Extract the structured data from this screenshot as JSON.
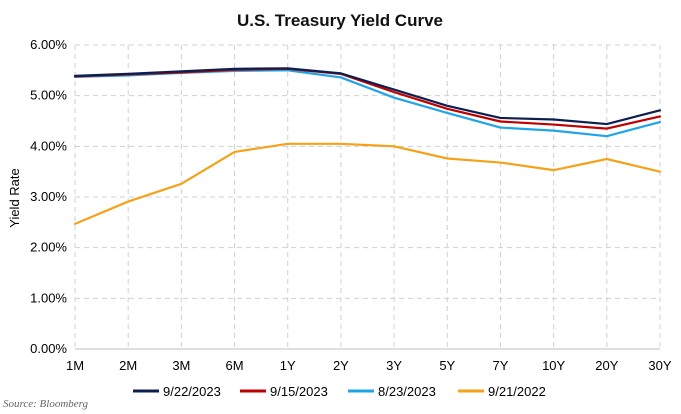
{
  "chart_data": {
    "type": "line",
    "title": "U.S. Treasury Yield Curve",
    "ylabel": "Yield Rate",
    "xlabel": "",
    "categories": [
      "1M",
      "2M",
      "3M",
      "6M",
      "1Y",
      "2Y",
      "3Y",
      "5Y",
      "7Y",
      "10Y",
      "20Y",
      "30Y"
    ],
    "ylim": [
      0,
      6
    ],
    "ytick_values": [
      0,
      1,
      2,
      3,
      4,
      5,
      6
    ],
    "ytick_labels": [
      "0.00%",
      "1.00%",
      "2.00%",
      "3.00%",
      "4.00%",
      "5.00%",
      "6.00%"
    ],
    "grid": true,
    "legend_position": "bottom",
    "series": [
      {
        "name": "9/22/2023",
        "color": "#0d1f4e",
        "values": [
          5.39,
          5.43,
          5.48,
          5.53,
          5.54,
          5.44,
          5.12,
          4.8,
          4.56,
          4.53,
          4.44,
          4.71
        ]
      },
      {
        "name": "9/15/2023",
        "color": "#c00000",
        "values": [
          5.38,
          5.42,
          5.46,
          5.51,
          5.53,
          5.43,
          5.07,
          4.74,
          4.49,
          4.43,
          4.35,
          4.59
        ]
      },
      {
        "name": "8/23/2023",
        "color": "#1fa5e6",
        "values": [
          5.37,
          5.4,
          5.45,
          5.49,
          5.5,
          5.36,
          4.96,
          4.66,
          4.37,
          4.31,
          4.2,
          4.48
        ]
      },
      {
        "name": "9/21/2022",
        "color": "#f5a21b",
        "values": [
          2.47,
          2.91,
          3.26,
          3.89,
          4.05,
          4.05,
          4.0,
          3.76,
          3.68,
          3.53,
          3.75,
          3.5
        ]
      }
    ]
  },
  "source": "Source: Bloomberg"
}
